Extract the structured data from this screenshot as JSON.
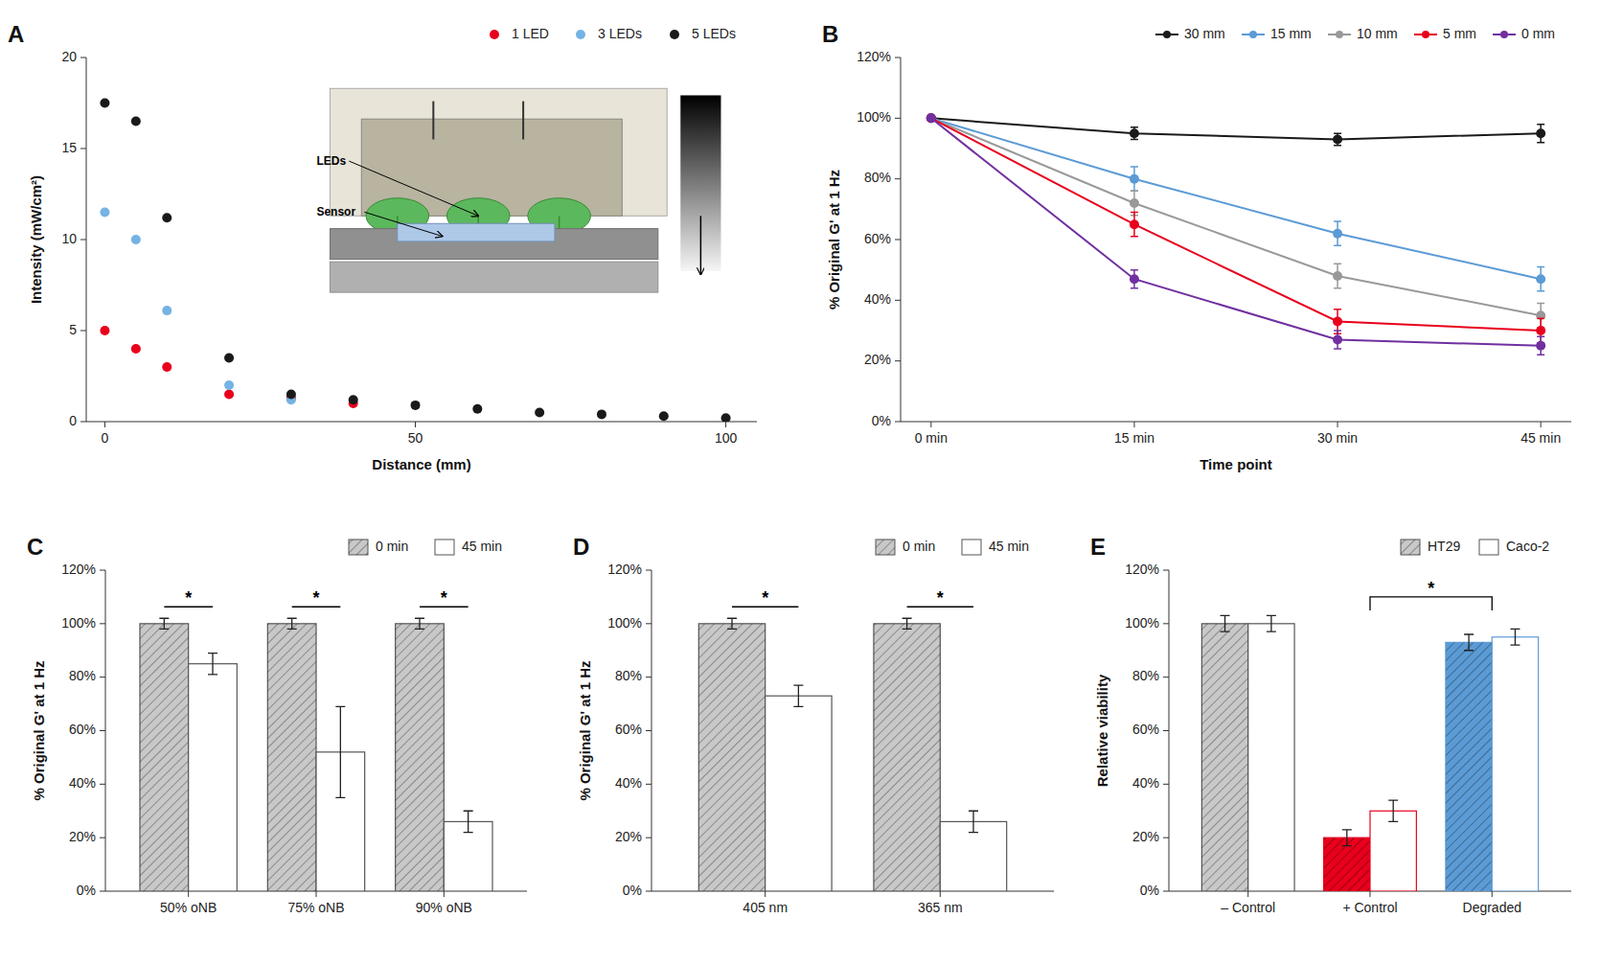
{
  "chart_data": [
    {
      "type": "scatter",
      "title": "A",
      "x_label": "Distance (mm)",
      "y_label": "Intensity (mW/cm²)",
      "series": [
        {
          "name": "1 LED",
          "color": "#e8001c",
          "x": [
            0,
            5,
            10,
            20,
            30,
            40
          ],
          "values": [
            5.0,
            4.0,
            3.0,
            1.5,
            1.3,
            1.0
          ]
        },
        {
          "name": "3 LEDs",
          "color": "#74b3e3",
          "x": [
            0,
            5,
            10,
            20,
            30
          ],
          "values": [
            11.5,
            10.0,
            6.1,
            2.0,
            1.2
          ]
        },
        {
          "name": "5 LEDs",
          "color": "#1a1a1a",
          "x": [
            0,
            5,
            10,
            20,
            30,
            40,
            50,
            60,
            70,
            80,
            90,
            100
          ],
          "values": [
            17.5,
            16.5,
            11.2,
            3.5,
            1.5,
            1.2,
            0.9,
            0.7,
            0.5,
            0.4,
            0.3,
            0.2
          ]
        }
      ],
      "xlim": [
        -3,
        105
      ],
      "ylim": [
        0,
        20
      ],
      "xticks": [
        0,
        50,
        100
      ],
      "yticks": [
        0,
        5,
        10,
        15,
        20
      ],
      "legend": "top",
      "annotations": [
        "LEDs",
        "Sensor"
      ]
    },
    {
      "type": "line",
      "title": "B",
      "x_label": "Time point",
      "y_label": "% Original G' at 1 Hz",
      "categories": [
        "0 min",
        "15 min",
        "30 min",
        "45 min"
      ],
      "series": [
        {
          "name": "30 mm",
          "color": "#1a1a1a",
          "values": [
            100,
            95,
            93,
            95
          ],
          "errors": [
            0,
            2,
            2,
            3
          ]
        },
        {
          "name": "15 mm",
          "color": "#5b9bd5",
          "values": [
            100,
            80,
            62,
            47
          ],
          "errors": [
            0,
            4,
            4,
            4
          ]
        },
        {
          "name": "10 mm",
          "color": "#999999",
          "values": [
            100,
            72,
            48,
            35
          ],
          "errors": [
            0,
            4,
            4,
            4
          ]
        },
        {
          "name": "5 mm",
          "color": "#e8001c",
          "values": [
            100,
            65,
            33,
            30
          ],
          "errors": [
            0,
            4,
            4,
            4
          ]
        },
        {
          "name": "0 mm",
          "color": "#7030a0",
          "values": [
            100,
            47,
            27,
            25
          ],
          "errors": [
            0,
            3,
            3,
            3
          ]
        }
      ],
      "ylim": [
        0,
        120
      ],
      "yticks": [
        {
          "value": 0,
          "label": "0%"
        },
        {
          "value": 20,
          "label": "20%"
        },
        {
          "value": 40,
          "label": "40%"
        },
        {
          "value": 60,
          "label": "60%"
        },
        {
          "value": 80,
          "label": "80%"
        },
        {
          "value": 100,
          "label": "100%"
        },
        {
          "value": 120,
          "label": "120%"
        }
      ],
      "legend": "top",
      "marker": "circle"
    },
    {
      "type": "bar",
      "title": "C",
      "y_label": "% Original G' at 1 Hz",
      "categories": [
        "50% oNB",
        "75% oNB",
        "90% oNB"
      ],
      "series": [
        {
          "name": "0 min",
          "color": "#c8c8c8",
          "values": [
            100,
            100,
            100
          ],
          "errors": [
            2,
            2,
            2
          ]
        },
        {
          "name": "45 min",
          "color": "#ffffff",
          "values": [
            85,
            52,
            26
          ],
          "errors": [
            4,
            17,
            4
          ]
        }
      ],
      "ylim": [
        0,
        120
      ],
      "yticks": [
        {
          "value": 0,
          "label": "0%"
        },
        {
          "value": 20,
          "label": "20%"
        },
        {
          "value": 40,
          "label": "40%"
        },
        {
          "value": 60,
          "label": "60%"
        },
        {
          "value": 80,
          "label": "80%"
        },
        {
          "value": 100,
          "label": "100%"
        },
        {
          "value": 120,
          "label": "120%"
        }
      ],
      "legend": "top",
      "annotations": [
        "*",
        "*",
        "*"
      ]
    },
    {
      "type": "bar",
      "title": "D",
      "y_label": "% Original G' at 1 Hz",
      "categories": [
        "405 nm",
        "365 nm"
      ],
      "series": [
        {
          "name": "0 min",
          "color": "#c8c8c8",
          "values": [
            100,
            100
          ],
          "errors": [
            2,
            2
          ]
        },
        {
          "name": "45 min",
          "color": "#ffffff",
          "values": [
            73,
            26
          ],
          "errors": [
            4,
            4
          ]
        }
      ],
      "ylim": [
        0,
        120
      ],
      "yticks": [
        {
          "value": 0,
          "label": "0%"
        },
        {
          "value": 20,
          "label": "20%"
        },
        {
          "value": 40,
          "label": "40%"
        },
        {
          "value": 60,
          "label": "60%"
        },
        {
          "value": 80,
          "label": "80%"
        },
        {
          "value": 100,
          "label": "100%"
        },
        {
          "value": 120,
          "label": "120%"
        }
      ],
      "legend": "top",
      "annotations": [
        "*",
        "*"
      ]
    },
    {
      "type": "bar",
      "title": "E",
      "y_label": "Relative viability",
      "categories": [
        "– Control",
        "+ Control",
        "Degraded"
      ],
      "series": [
        {
          "name": "HT29",
          "colors": [
            "#c8c8c8",
            "#e8001c",
            "#5b9bd5"
          ],
          "values": [
            100,
            20,
            93
          ],
          "errors": [
            3,
            3,
            3
          ]
        },
        {
          "name": "Caco-2",
          "color": "#ffffff",
          "values": [
            100,
            30,
            95
          ],
          "errors": [
            3,
            4,
            3
          ]
        }
      ],
      "ylim": [
        0,
        120
      ],
      "yticks": [
        {
          "value": 0,
          "label": "0%"
        },
        {
          "value": 20,
          "label": "20%"
        },
        {
          "value": 40,
          "label": "40%"
        },
        {
          "value": 60,
          "label": "60%"
        },
        {
          "value": 80,
          "label": "80%"
        },
        {
          "value": 100,
          "label": "100%"
        },
        {
          "value": 120,
          "label": "120%"
        }
      ],
      "legend": "top",
      "annotations": [
        {
          "text": "*",
          "from": "+ Control",
          "to": "Degraded",
          "y": 110,
          "y_start": 105
        }
      ]
    }
  ]
}
